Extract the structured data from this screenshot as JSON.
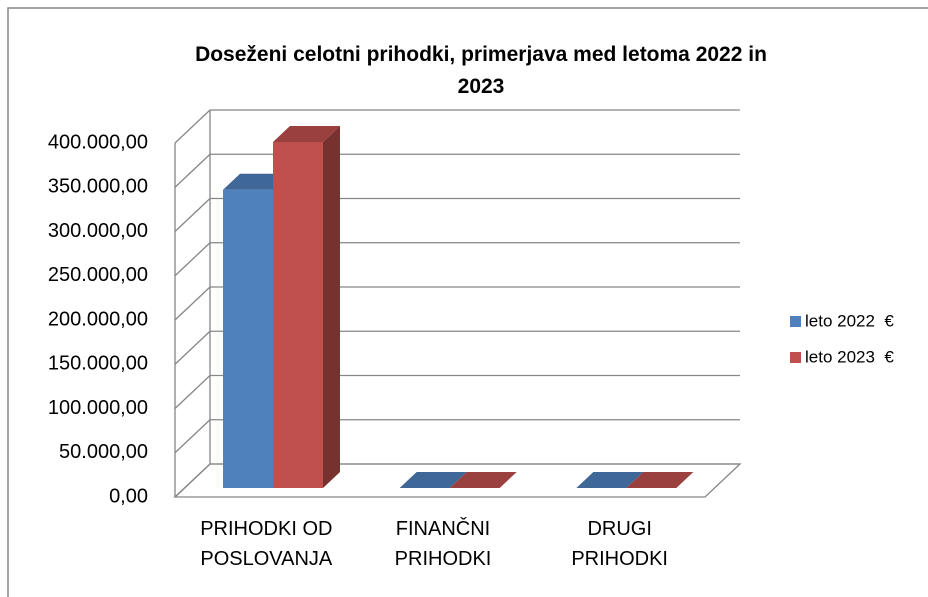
{
  "chart_data": {
    "type": "bar3d",
    "title": "Doseženi celotni prihodki, primerjava med letoma 2022 in 2023",
    "categories": [
      "PRIHODKI OD POSLOVANJA",
      "FINANČNI PRIHODKI",
      "DRUGI PRIHODKI"
    ],
    "series": [
      {
        "name": "leto 2022  €",
        "color": "#4f81bd",
        "values": [
          337000,
          0,
          0
        ]
      },
      {
        "name": "leto 2023  €",
        "color": "#c0504d",
        "values": [
          391000,
          0,
          0
        ]
      }
    ],
    "ylim": [
      0,
      400000
    ],
    "yticks": [
      {
        "value": 0,
        "label": "0,00"
      },
      {
        "value": 50000,
        "label": "50.000,00"
      },
      {
        "value": 100000,
        "label": "100.000,00"
      },
      {
        "value": 150000,
        "label": "150.000,00"
      },
      {
        "value": 200000,
        "label": "200.000,00"
      },
      {
        "value": 250000,
        "label": "250.000,00"
      },
      {
        "value": 300000,
        "label": "300.000,00"
      },
      {
        "value": 350000,
        "label": "350.000,00"
      },
      {
        "value": 400000,
        "label": "400.000,00"
      }
    ],
    "grid": true,
    "legend": "right"
  }
}
